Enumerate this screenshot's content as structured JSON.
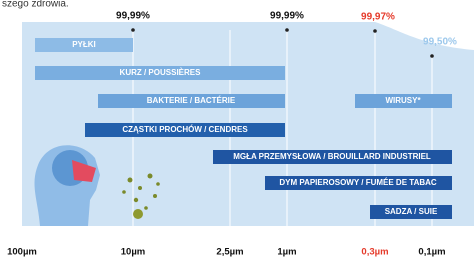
{
  "header": {
    "text": "szego zdrowia."
  },
  "percentages": [
    {
      "label": "99,99%"
    },
    {
      "label": "99,99%"
    },
    {
      "label": "99,97%"
    },
    {
      "label": "99,50%"
    }
  ],
  "bars": [
    {
      "label": "PYŁKI"
    },
    {
      "label": "KURZ / POUSSIÈRES"
    },
    {
      "label": "BAKTERIE / BACTÉRIE"
    },
    {
      "label": "WIRUSY*"
    },
    {
      "label": "CZĄSTKI PROCHÓW / CENDRES"
    },
    {
      "label": "MGŁA PRZEMYSŁOWA / BROUILLARD INDUSTRIEL"
    },
    {
      "label": "DYM PAPIEROSOWY / FUMÉE DE TABAC"
    },
    {
      "label": "SADZA / SUIE"
    }
  ],
  "axis": [
    "100µm",
    "10µm",
    "2,5µm",
    "1µm",
    "0,3µm",
    "0,1µm"
  ]
}
